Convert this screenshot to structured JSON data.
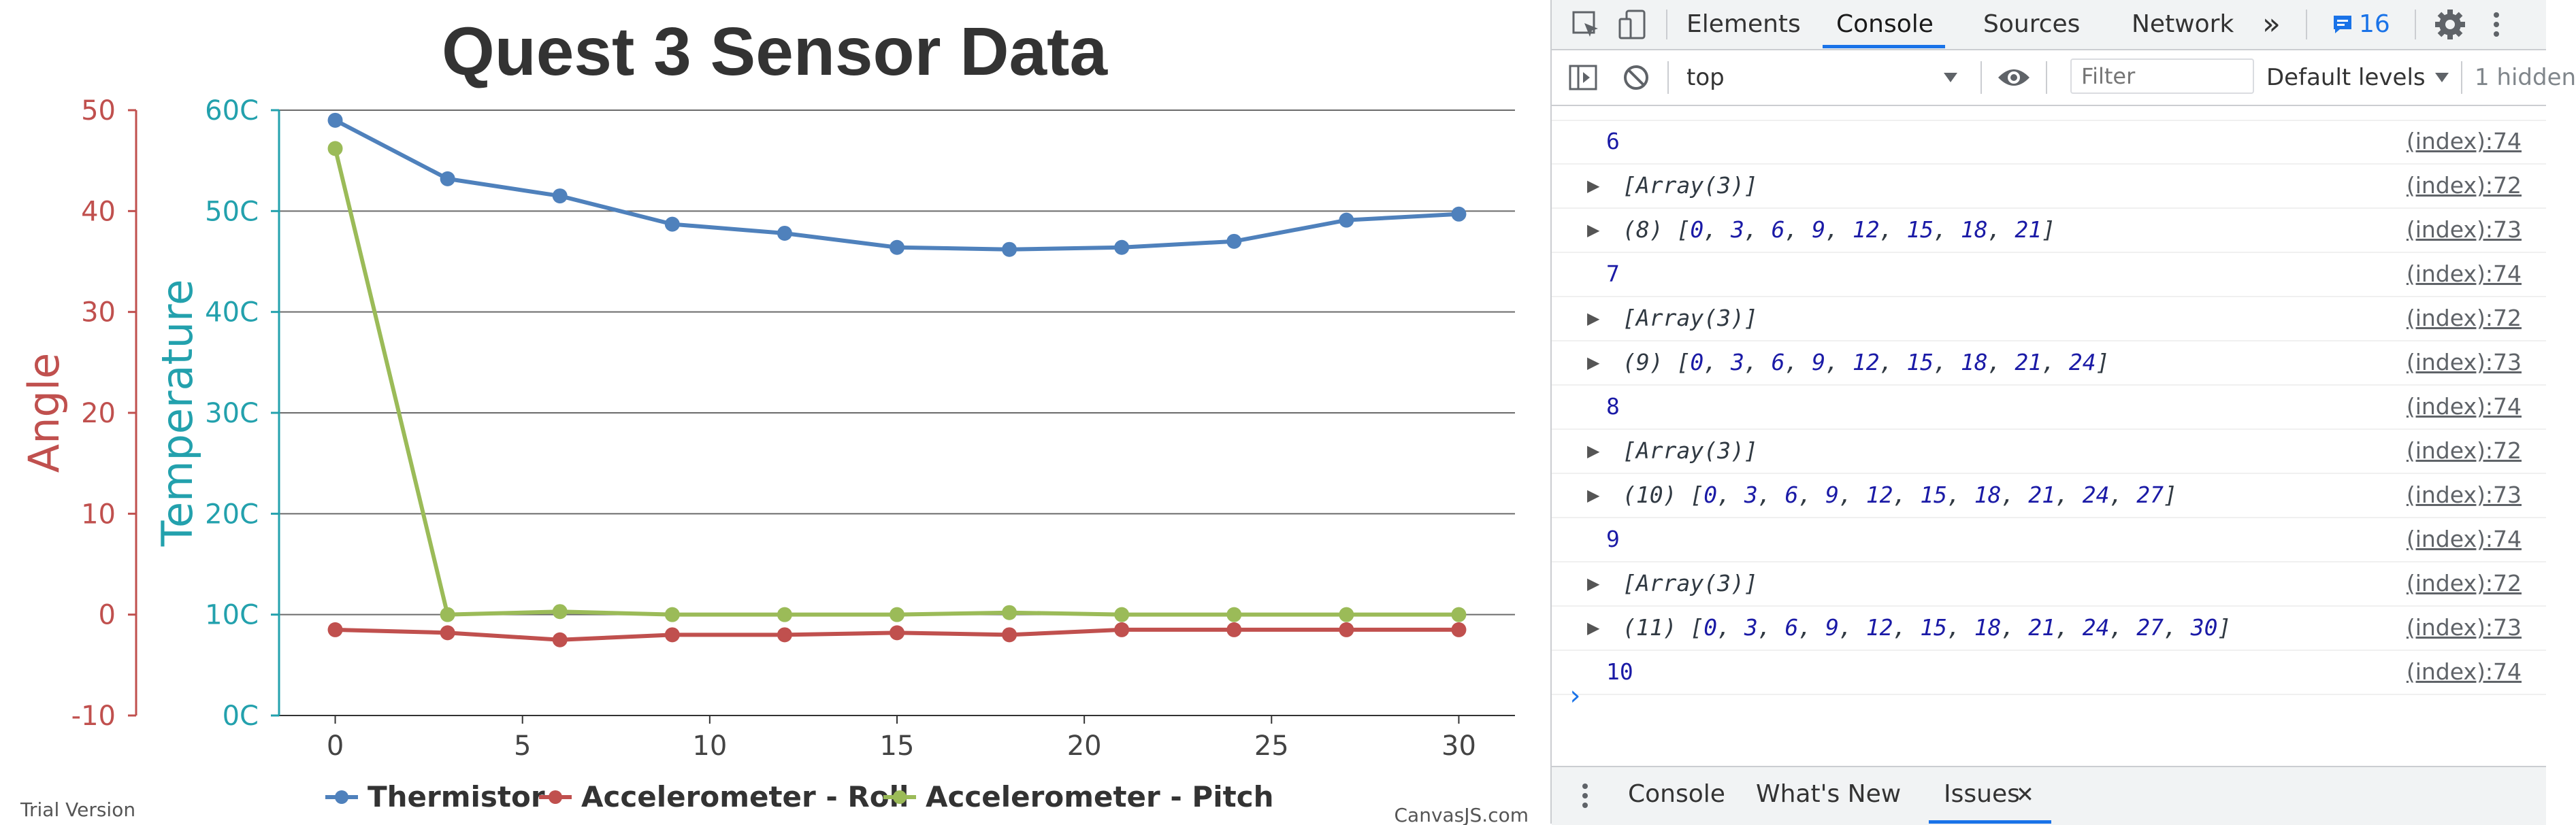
{
  "chart_data": {
    "type": "line",
    "title": "Quest 3 Sensor Data",
    "x": [
      0,
      3,
      6,
      9,
      12,
      15,
      18,
      21,
      24,
      27,
      30
    ],
    "xticks": [
      "0",
      "5",
      "10",
      "15",
      "20",
      "25",
      "30"
    ],
    "xlim": [
      -1.5,
      31.5
    ],
    "grid": true,
    "legend_position": "bottom-center",
    "axes": {
      "angle": {
        "title": "Angle",
        "min": -10,
        "max": 50,
        "ticks": [
          "-10",
          "0",
          "10",
          "20",
          "30",
          "40",
          "50"
        ],
        "color": "#c0504e"
      },
      "temperature": {
        "title": "Temperature",
        "min": 0,
        "max": 60,
        "ticks": [
          "0C",
          "10C",
          "20C",
          "30C",
          "40C",
          "50C",
          "60C"
        ],
        "color": "#23a1ad"
      }
    },
    "series": [
      {
        "name": "Thermistor",
        "axis": "temperature",
        "color": "#4f81bc",
        "values": [
          59,
          53.2,
          51.5,
          48.7,
          47.8,
          46.4,
          46.2,
          46.4,
          47,
          49.1,
          49.7
        ]
      },
      {
        "name": "Accelerometer - Roll",
        "axis": "angle",
        "color": "#c0504e",
        "values": [
          -1.5,
          -1.8,
          -2.5,
          -2,
          -2,
          -1.8,
          -2,
          -1.5,
          -1.5,
          -1.5,
          -1.5
        ]
      },
      {
        "name": "Accelerometer - Pitch",
        "axis": "angle",
        "color": "#9bbb58",
        "values": [
          46.2,
          0,
          0.3,
          0,
          0,
          0,
          0.2,
          0,
          0,
          0,
          0
        ]
      }
    ],
    "credits": {
      "left": "Trial Version",
      "right": "CanvasJS.com"
    }
  },
  "devtools": {
    "tabs": [
      "Elements",
      "Console",
      "Sources",
      "Network"
    ],
    "active_tab": "Console",
    "more_tabs": "»",
    "issues_count": "16",
    "context": "top",
    "filter_placeholder": "Filter",
    "levels": "Default levels",
    "hidden": "1 hidden",
    "logs": [
      {
        "kind": "num",
        "text": "6",
        "src": "(index):74"
      },
      {
        "kind": "obj",
        "text": "[Array(3)]",
        "src": "(index):72"
      },
      {
        "kind": "arr",
        "count": "(8)",
        "items": [
          "0",
          "3",
          "6",
          "9",
          "12",
          "15",
          "18",
          "21"
        ],
        "src": "(index):73"
      },
      {
        "kind": "num",
        "text": "7",
        "src": "(index):74"
      },
      {
        "kind": "obj",
        "text": "[Array(3)]",
        "src": "(index):72"
      },
      {
        "kind": "arr",
        "count": "(9)",
        "items": [
          "0",
          "3",
          "6",
          "9",
          "12",
          "15",
          "18",
          "21",
          "24"
        ],
        "src": "(index):73"
      },
      {
        "kind": "num",
        "text": "8",
        "src": "(index):74"
      },
      {
        "kind": "obj",
        "text": "[Array(3)]",
        "src": "(index):72"
      },
      {
        "kind": "arr",
        "count": "(10)",
        "items": [
          "0",
          "3",
          "6",
          "9",
          "12",
          "15",
          "18",
          "21",
          "24",
          "27"
        ],
        "src": "(index):73"
      },
      {
        "kind": "num",
        "text": "9",
        "src": "(index):74"
      },
      {
        "kind": "obj",
        "text": "[Array(3)]",
        "src": "(index):72"
      },
      {
        "kind": "arr",
        "count": "(11)",
        "items": [
          "0",
          "3",
          "6",
          "9",
          "12",
          "15",
          "18",
          "21",
          "24",
          "27",
          "30"
        ],
        "src": "(index):73"
      },
      {
        "kind": "num",
        "text": "10",
        "src": "(index):74"
      }
    ],
    "drawer_tabs": [
      "Console",
      "What's New",
      "Issues"
    ],
    "active_drawer_tab": "Issues",
    "close_glyph": "✕"
  }
}
